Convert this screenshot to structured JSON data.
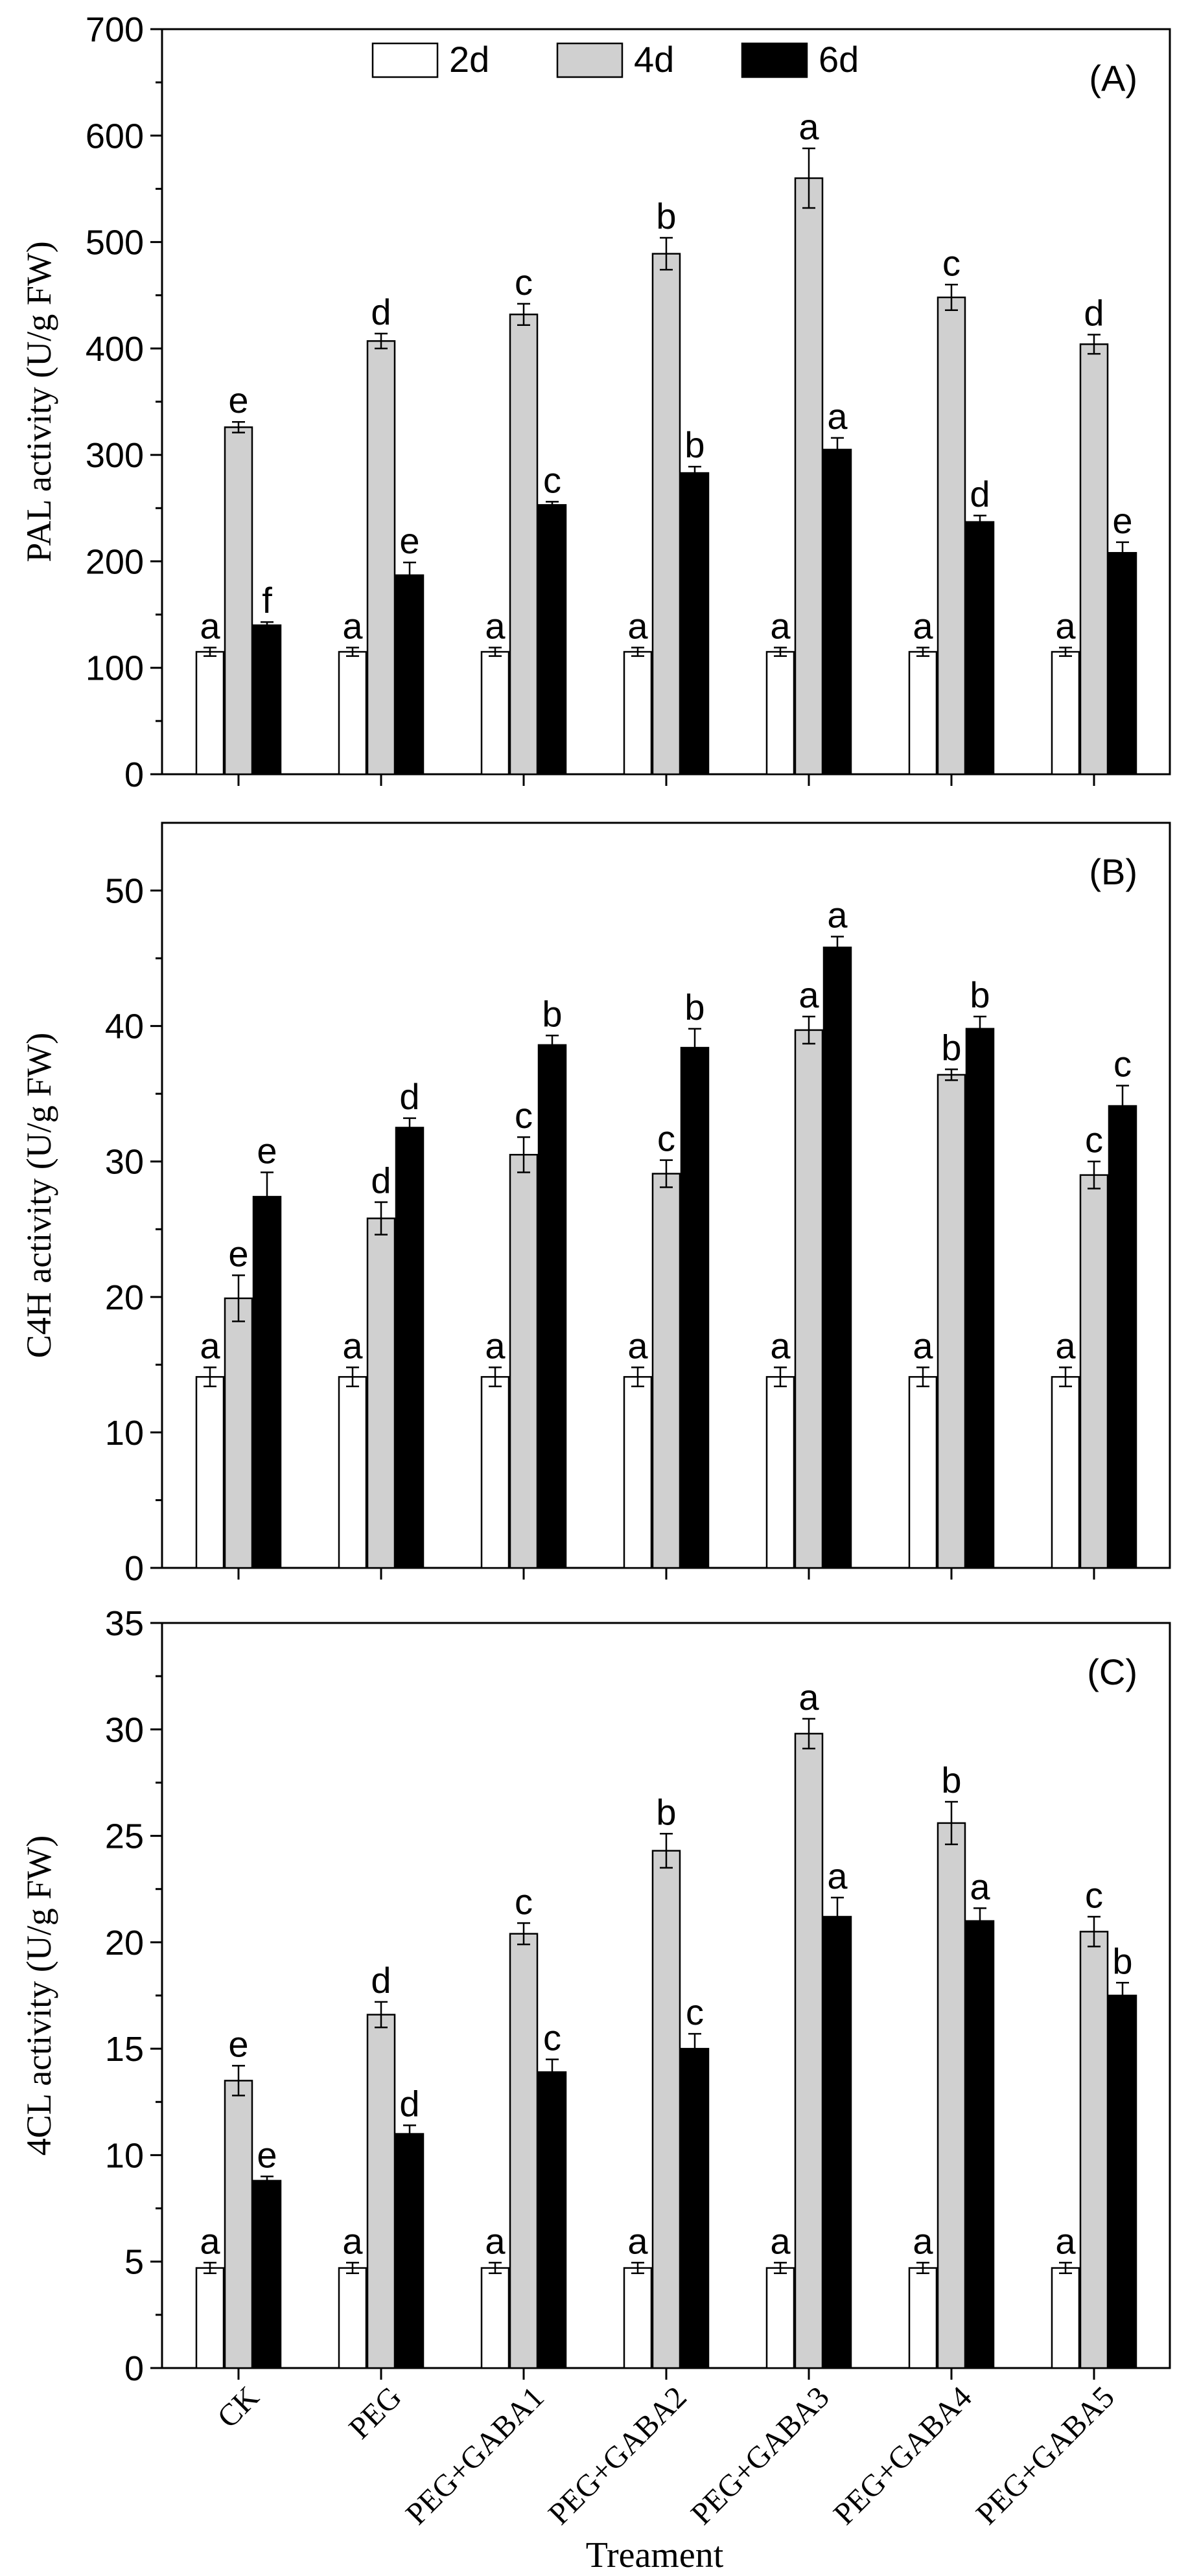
{
  "figure": {
    "x_axis_title": "Treament",
    "categories": [
      "CK",
      "PEG",
      "PEG+GABA1",
      "PEG+GABA2",
      "PEG+GABA3",
      "PEG+GABA4",
      "PEG+GABA5"
    ],
    "legend": [
      {
        "name": "2d",
        "color": "#ffffff"
      },
      {
        "name": "4d",
        "color": "#d0d0d0"
      },
      {
        "name": "6d",
        "color": "#000000"
      }
    ]
  },
  "chart_data": [
    {
      "type": "bar",
      "panel_label": "(A)",
      "ylabel": "PAL activity (U/g FW)",
      "ylim": [
        0,
        700
      ],
      "yticks": [
        0,
        100,
        200,
        300,
        400,
        500,
        600,
        700
      ],
      "categories": [
        "CK",
        "PEG",
        "PEG+GABA1",
        "PEG+GABA2",
        "PEG+GABA3",
        "PEG+GABA4",
        "PEG+GABA5"
      ],
      "legend_position": "top",
      "series": [
        {
          "name": "2d",
          "values": [
            115,
            115,
            115,
            115,
            115,
            115,
            115
          ],
          "errors": [
            4,
            4,
            4,
            4,
            4,
            4,
            4
          ],
          "letters": [
            "a",
            "a",
            "a",
            "a",
            "a",
            "a",
            "a"
          ]
        },
        {
          "name": "4d",
          "values": [
            326,
            407,
            432,
            489,
            560,
            448,
            404
          ],
          "errors": [
            5,
            7,
            10,
            15,
            28,
            12,
            9
          ],
          "letters": [
            "e",
            "d",
            "c",
            "b",
            "a",
            "c",
            "d"
          ]
        },
        {
          "name": "6d",
          "values": [
            140,
            187,
            253,
            283,
            305,
            237,
            208
          ],
          "errors": [
            3,
            12,
            3,
            6,
            11,
            6,
            10
          ],
          "letters": [
            "f",
            "e",
            "c",
            "b",
            "a",
            "d",
            "e"
          ]
        }
      ]
    },
    {
      "type": "bar",
      "panel_label": "(B)",
      "ylabel": "C4H activity (U/g FW)",
      "ylim": [
        0,
        55
      ],
      "yticks": [
        0,
        10,
        20,
        30,
        40,
        50
      ],
      "categories": [
        "CK",
        "PEG",
        "PEG+GABA1",
        "PEG+GABA2",
        "PEG+GABA3",
        "PEG+GABA4",
        "PEG+GABA5"
      ],
      "series": [
        {
          "name": "2d",
          "values": [
            14.1,
            14.1,
            14.1,
            14.1,
            14.1,
            14.1,
            14.1
          ],
          "errors": [
            0.7,
            0.7,
            0.7,
            0.7,
            0.7,
            0.7,
            0.7
          ],
          "letters": [
            "a",
            "a",
            "a",
            "a",
            "a",
            "a",
            "a"
          ]
        },
        {
          "name": "4d",
          "values": [
            19.9,
            25.8,
            30.5,
            29.1,
            39.7,
            36.4,
            29.0
          ],
          "errors": [
            1.7,
            1.2,
            1.3,
            1.0,
            1.0,
            0.4,
            1.0
          ],
          "letters": [
            "e",
            "d",
            "c",
            "c",
            "a",
            "b",
            "c"
          ]
        },
        {
          "name": "6d",
          "values": [
            27.4,
            32.5,
            38.6,
            38.4,
            45.8,
            39.8,
            34.1
          ],
          "errors": [
            1.8,
            0.7,
            0.7,
            1.4,
            0.8,
            0.9,
            1.5
          ],
          "letters": [
            "e",
            "d",
            "b",
            "b",
            "a",
            "b",
            "c"
          ]
        }
      ]
    },
    {
      "type": "bar",
      "panel_label": "(C)",
      "ylabel": "4CL activity (U/g FW)",
      "ylim": [
        0,
        35
      ],
      "yticks": [
        0,
        5,
        10,
        15,
        20,
        25,
        30,
        35
      ],
      "categories": [
        "CK",
        "PEG",
        "PEG+GABA1",
        "PEG+GABA2",
        "PEG+GABA3",
        "PEG+GABA4",
        "PEG+GABA5"
      ],
      "xlabel": "Treament",
      "series": [
        {
          "name": "2d",
          "values": [
            4.7,
            4.7,
            4.7,
            4.7,
            4.7,
            4.7,
            4.7
          ],
          "errors": [
            0.25,
            0.25,
            0.25,
            0.25,
            0.25,
            0.25,
            0.25
          ],
          "letters": [
            "a",
            "a",
            "a",
            "a",
            "a",
            "a",
            "a"
          ]
        },
        {
          "name": "4d",
          "values": [
            13.5,
            16.6,
            20.4,
            24.3,
            29.8,
            25.6,
            20.5
          ],
          "errors": [
            0.7,
            0.6,
            0.5,
            0.8,
            0.7,
            1.0,
            0.7
          ],
          "letters": [
            "e",
            "d",
            "c",
            "b",
            "a",
            "b",
            "c"
          ]
        },
        {
          "name": "6d",
          "values": [
            8.8,
            11.0,
            13.9,
            15.0,
            21.2,
            21.0,
            17.5
          ],
          "errors": [
            0.2,
            0.4,
            0.6,
            0.7,
            0.9,
            0.6,
            0.6
          ],
          "letters": [
            "e",
            "d",
            "c",
            "c",
            "a",
            "a",
            "b"
          ]
        }
      ]
    }
  ]
}
